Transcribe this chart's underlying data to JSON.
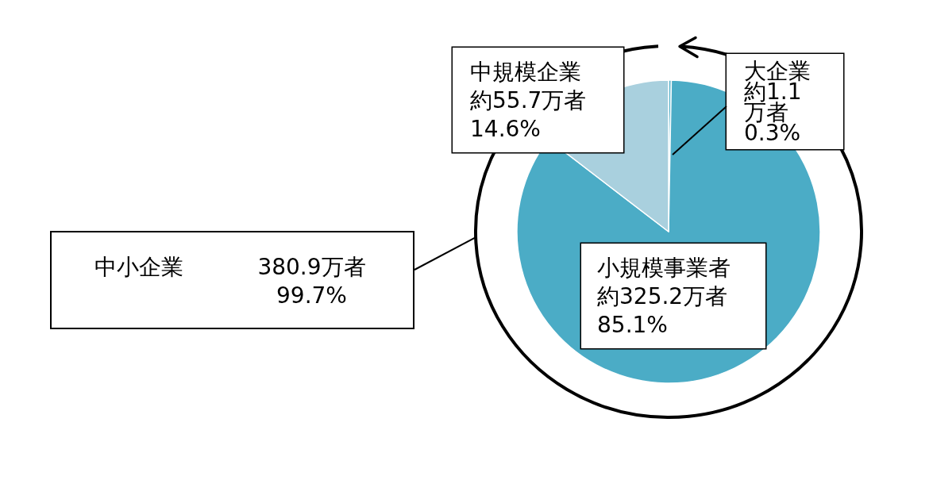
{
  "chart_data": {
    "type": "pie",
    "categories": [
      "大企業",
      "小規模事業者",
      "中規模企業"
    ],
    "values": [
      1.1,
      325.2,
      55.7
    ],
    "colors": [
      "#4bacc6",
      "#4bacc6",
      "#a9d0de"
    ],
    "value_labels": [
      "約1.1万者\n0.3%",
      "約325.2万者\n85.1%",
      "約55.7万者\n14.6%"
    ],
    "annotations": [
      "中小企業",
      "380.9万者",
      "99.7%"
    ]
  }
}
